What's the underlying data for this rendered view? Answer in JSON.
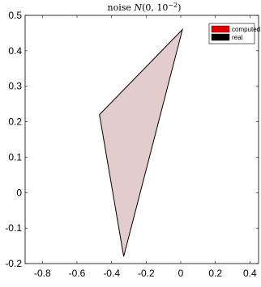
{
  "chart_data": {
    "type": "area",
    "title": "noise N(0, 10^{-2})",
    "title_parts": {
      "prefix": "noise ",
      "fn": "N",
      "open": "(0, 10",
      "exp": "−2",
      "close": ")"
    },
    "xlim": [
      -0.9,
      0.45
    ],
    "ylim": [
      -0.2,
      0.5
    ],
    "xticks": [
      -0.8,
      -0.6,
      -0.4,
      -0.2,
      0,
      0.2,
      0.4
    ],
    "yticks": [
      -0.2,
      -0.1,
      0,
      0.1,
      0.2,
      0.3,
      0.4,
      0.5
    ],
    "xtick_labels": [
      "-0.8",
      "-0.6",
      "-0.4",
      "-0.2",
      "0",
      "0.2",
      "0.4"
    ],
    "ytick_labels": [
      "-0.2",
      "-0.1",
      "0",
      "0.1",
      "0.2",
      "0.3",
      "0.4",
      "0.5"
    ],
    "grid": false,
    "legend_position": "top-right",
    "series": [
      {
        "name": "computed",
        "color": "#e00000",
        "points": [
          [
            0.01,
            0.46
          ],
          [
            -0.47,
            0.22
          ],
          [
            -0.33,
            -0.18
          ]
        ]
      },
      {
        "name": "real",
        "color": "#000000",
        "points": [
          [
            0.01,
            0.46
          ],
          [
            -0.47,
            0.22
          ],
          [
            -0.33,
            -0.18
          ]
        ]
      }
    ],
    "fill_color": "#e3cccc"
  }
}
